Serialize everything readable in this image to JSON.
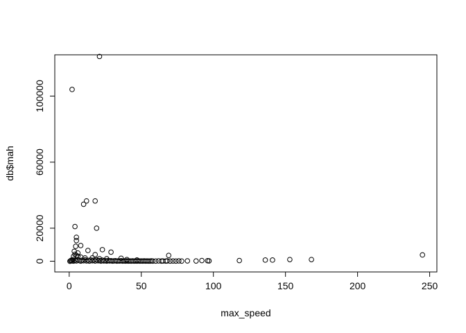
{
  "chart_data": {
    "type": "scatter",
    "xlabel": "max_speed",
    "ylabel": "db$mah",
    "xlim": [
      -10,
      255
    ],
    "ylim": [
      -6500,
      125000
    ],
    "xticks": [
      0,
      50,
      100,
      150,
      200,
      250
    ],
    "yticks": [
      0,
      20000,
      60000,
      100000
    ],
    "grid": false,
    "point_style": "open-circle",
    "points": [
      [
        2,
        104000
      ],
      [
        21,
        124000
      ],
      [
        12,
        36500
      ],
      [
        18,
        36500
      ],
      [
        10,
        34500
      ],
      [
        4,
        21000
      ],
      [
        19,
        20000
      ],
      [
        5,
        14500
      ],
      [
        5,
        12500
      ],
      [
        8,
        9500
      ],
      [
        4.5,
        9000
      ],
      [
        23,
        7000
      ],
      [
        3.5,
        6000
      ],
      [
        13,
        6500
      ],
      [
        29,
        5500
      ],
      [
        6,
        5000
      ],
      [
        18,
        4000
      ],
      [
        4,
        4200
      ],
      [
        5,
        3500
      ],
      [
        3,
        3000
      ],
      [
        6,
        3000
      ],
      [
        8,
        2500
      ],
      [
        11,
        2000
      ],
      [
        16,
        2000
      ],
      [
        21,
        1500
      ],
      [
        26,
        1500
      ],
      [
        36,
        1800
      ],
      [
        40,
        1000
      ],
      [
        47,
        700
      ],
      [
        69,
        3500
      ],
      [
        0.5,
        0
      ],
      [
        1,
        300
      ],
      [
        1.5,
        600
      ],
      [
        2,
        200
      ],
      [
        2.5,
        900
      ],
      [
        3,
        100
      ],
      [
        4,
        500
      ],
      [
        5,
        200
      ],
      [
        6,
        800
      ],
      [
        7,
        400
      ],
      [
        8,
        100
      ],
      [
        9,
        600
      ],
      [
        10,
        300
      ],
      [
        11,
        900
      ],
      [
        12,
        200
      ],
      [
        13,
        500
      ],
      [
        14,
        100
      ],
      [
        15,
        700
      ],
      [
        16,
        300
      ],
      [
        17,
        600
      ],
      [
        18,
        150
      ],
      [
        19,
        800
      ],
      [
        20,
        300
      ],
      [
        21,
        400
      ],
      [
        22,
        100
      ],
      [
        23,
        600
      ],
      [
        24,
        200
      ],
      [
        25,
        300
      ],
      [
        26,
        100
      ],
      [
        27,
        400
      ],
      [
        28,
        200
      ],
      [
        29,
        300
      ],
      [
        30,
        100
      ],
      [
        31,
        200
      ],
      [
        32,
        300
      ],
      [
        33,
        100
      ],
      [
        34,
        200
      ],
      [
        35,
        150
      ],
      [
        36,
        300
      ],
      [
        37,
        100
      ],
      [
        38,
        200
      ],
      [
        39,
        100
      ],
      [
        40,
        200
      ],
      [
        41,
        100
      ],
      [
        42,
        150
      ],
      [
        43,
        100
      ],
      [
        44,
        200
      ],
      [
        45,
        100
      ],
      [
        46,
        150
      ],
      [
        47,
        100
      ],
      [
        48,
        200
      ],
      [
        49,
        100
      ],
      [
        50,
        150
      ],
      [
        51,
        100
      ],
      [
        52,
        200
      ],
      [
        53,
        100
      ],
      [
        54,
        150
      ],
      [
        55,
        100
      ],
      [
        56,
        100
      ],
      [
        57,
        200
      ],
      [
        58,
        100
      ],
      [
        60,
        100
      ],
      [
        62,
        200
      ],
      [
        64,
        100
      ],
      [
        65,
        150
      ],
      [
        67,
        100
      ],
      [
        68,
        200
      ],
      [
        70,
        100
      ],
      [
        72,
        150
      ],
      [
        74,
        100
      ],
      [
        76,
        200
      ],
      [
        78,
        100
      ],
      [
        82,
        200
      ],
      [
        88,
        150
      ],
      [
        92,
        400
      ],
      [
        96,
        300
      ],
      [
        97,
        200
      ],
      [
        118,
        400
      ],
      [
        136,
        700
      ],
      [
        141,
        700
      ],
      [
        153,
        1000
      ],
      [
        168,
        1000
      ],
      [
        245,
        3800
      ]
    ]
  }
}
